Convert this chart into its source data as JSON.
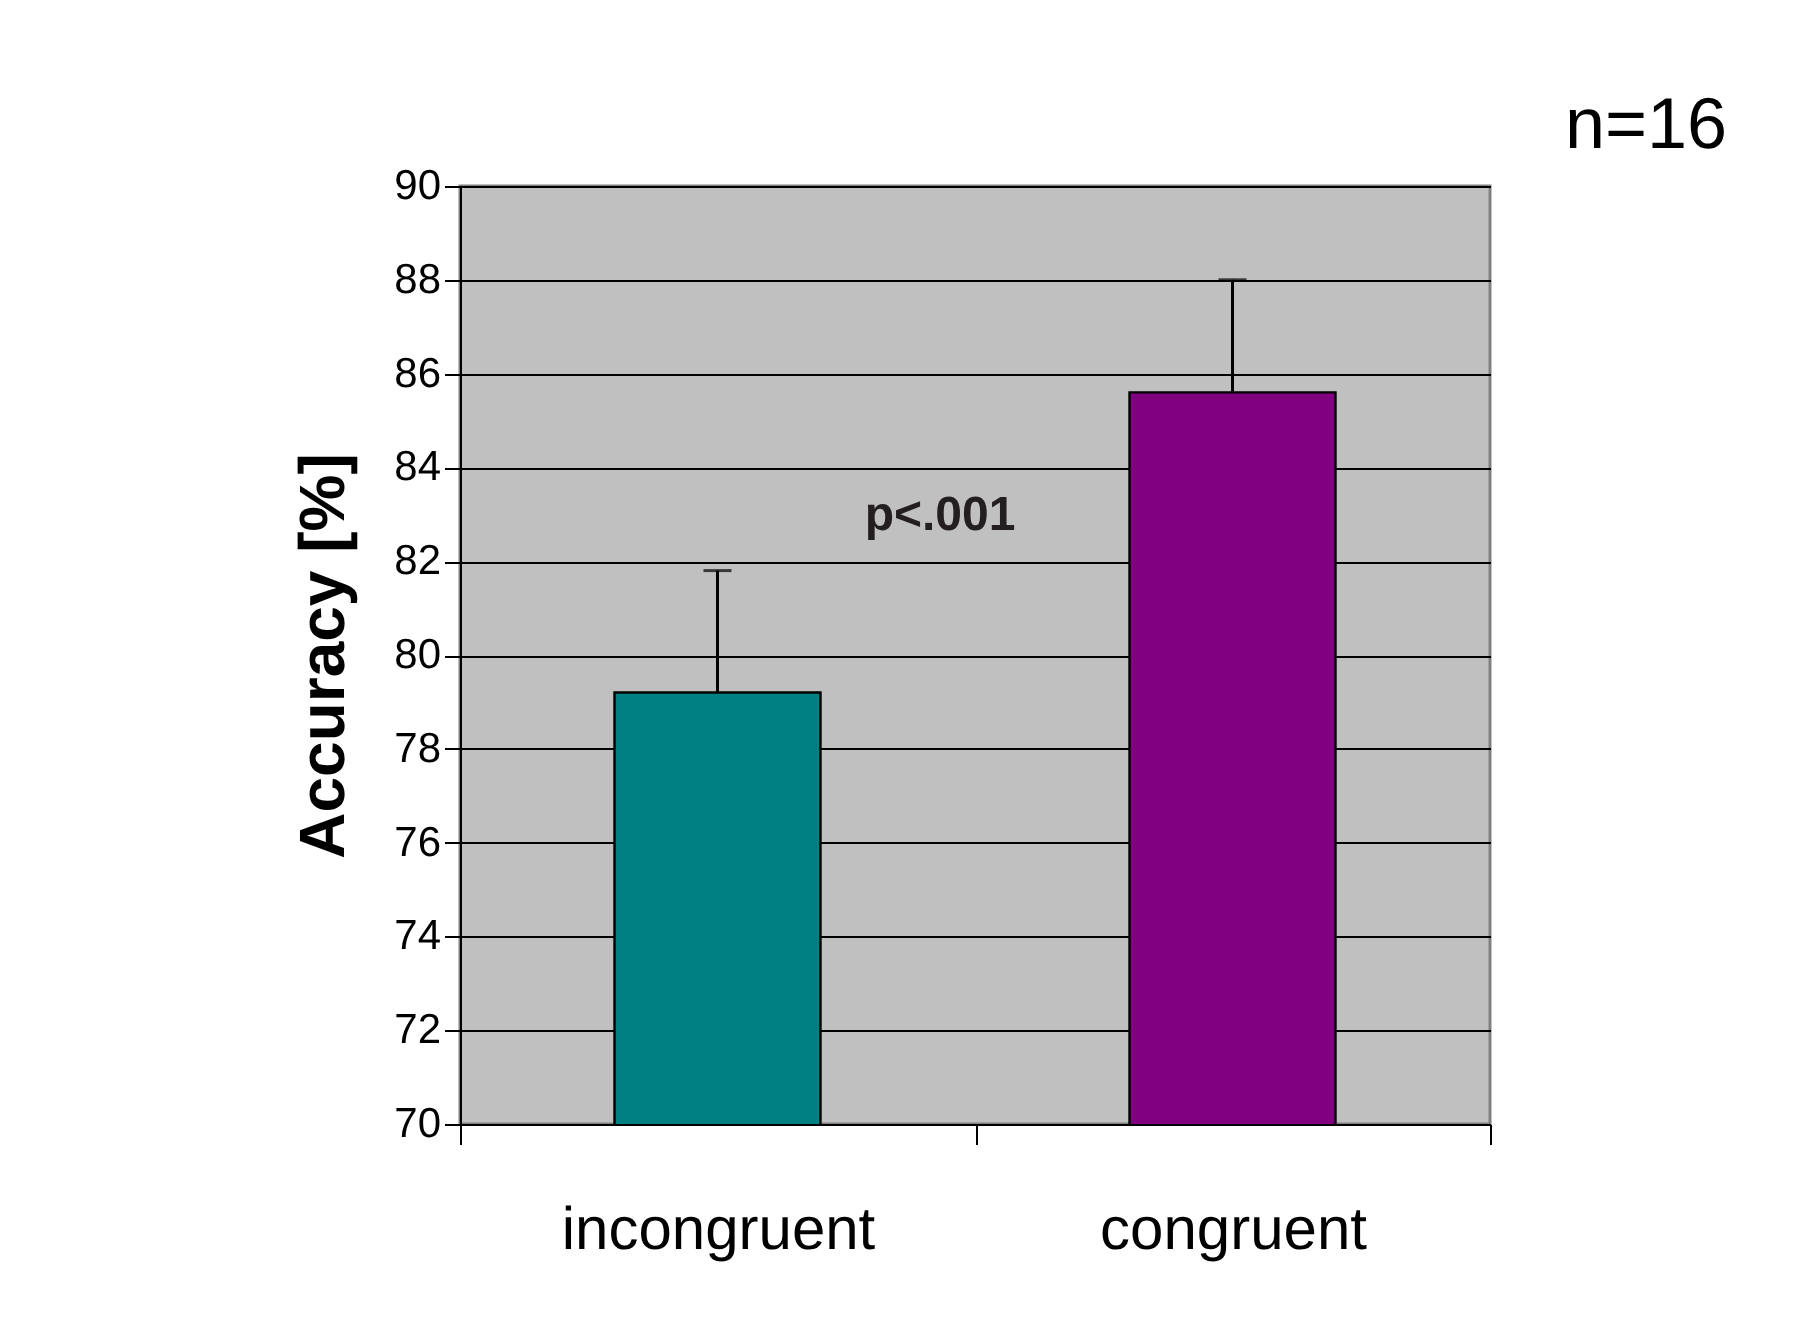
{
  "chart_data": {
    "type": "bar",
    "categories": [
      "incongruent",
      "congruent"
    ],
    "values": [
      79.2,
      85.6
    ],
    "colors": [
      "#008080",
      "#800080"
    ],
    "errors": [
      [
        79.2,
        81.8
      ],
      [
        85.6,
        88.0
      ]
    ],
    "ylabel": "Accuracy [%]",
    "ylim": [
      70,
      90
    ],
    "yticks": [
      70,
      72,
      74,
      76,
      78,
      80,
      82,
      84,
      86,
      88,
      90
    ],
    "grid": "y",
    "annotations": [
      "p<.001",
      "n=16"
    ]
  }
}
